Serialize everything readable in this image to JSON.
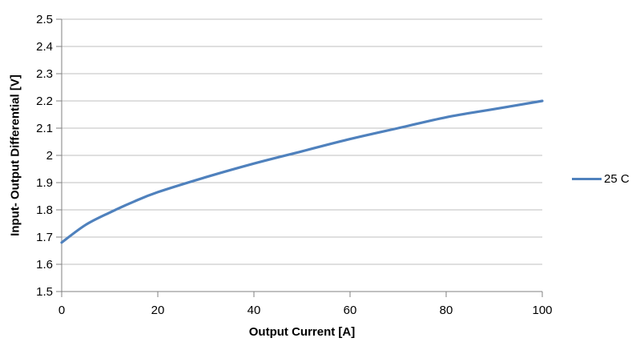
{
  "chart_data": {
    "type": "line",
    "title": "",
    "xlabel": "Output Current [A]",
    "ylabel": "Input- Output Differential [V]",
    "xlim": [
      0,
      100
    ],
    "ylim": [
      1.5,
      2.5
    ],
    "x_tick_values": [
      0,
      20,
      40,
      60,
      80,
      100
    ],
    "x_tick_labels": [
      "0",
      "20",
      "40",
      "60",
      "80",
      "100"
    ],
    "y_tick_values": [
      2.5,
      2.4,
      2.3,
      2.2,
      2.1,
      2.0,
      1.9,
      1.8,
      1.7,
      1.6,
      1.5
    ],
    "y_tick_labels": [
      "2.5",
      "2.4",
      "2.3",
      "2.2",
      "2.1",
      "2",
      "1.9",
      "1.8",
      "1.7",
      "1.6",
      "1.5"
    ],
    "grid": "horizontal",
    "legend_position": "right",
    "colors": {
      "series": "#4F81BD",
      "gridline": "#BFBFBF",
      "axis": "#808080"
    },
    "series": [
      {
        "name": "25 C",
        "x": [
          0,
          5,
          10,
          15,
          20,
          30,
          40,
          50,
          60,
          70,
          80,
          90,
          100
        ],
        "y": [
          1.68,
          1.745,
          1.79,
          1.83,
          1.865,
          1.92,
          1.97,
          2.015,
          2.06,
          2.1,
          2.14,
          2.17,
          2.2
        ]
      }
    ]
  }
}
